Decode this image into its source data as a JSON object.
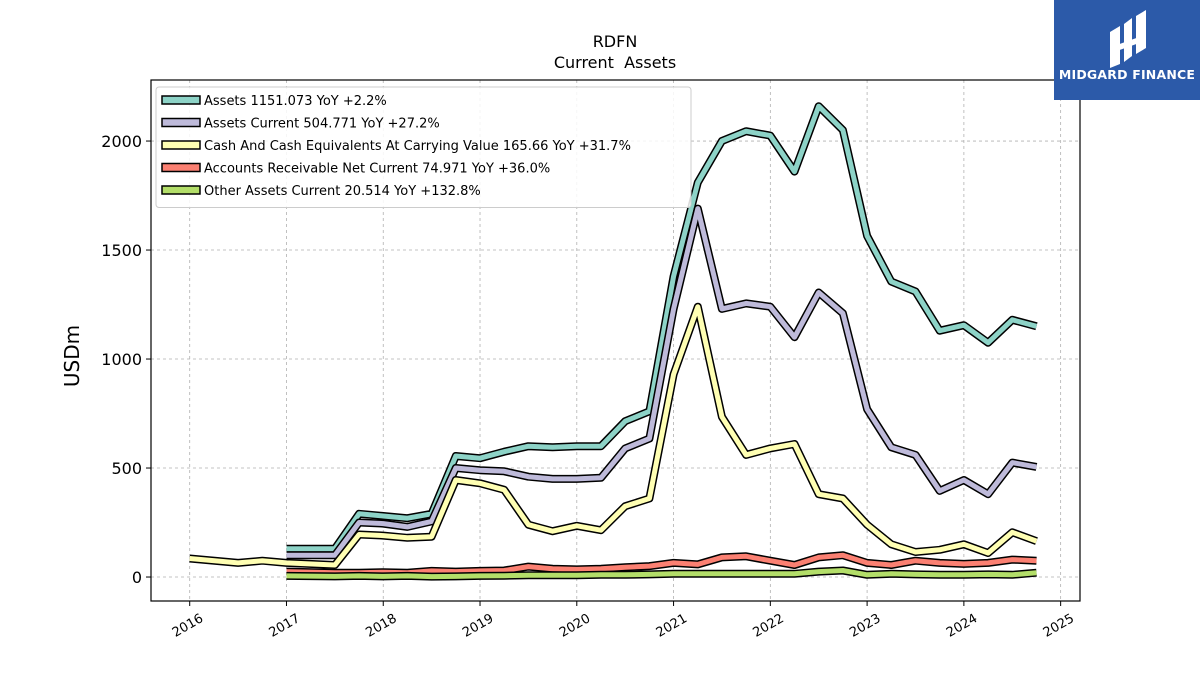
{
  "chart_data": {
    "type": "line",
    "title": "RDFN",
    "subtitle": "Current  Assets",
    "ylabel": "USDm",
    "xlabel": "",
    "xlim": [
      2015.6,
      2025.2
    ],
    "ylim": [
      -110,
      2280
    ],
    "x_ticks": [
      "2016",
      "2017",
      "2018",
      "2019",
      "2020",
      "2021",
      "2022",
      "2023",
      "2024",
      "2025"
    ],
    "y_ticks": [
      0,
      500,
      1000,
      1500,
      2000
    ],
    "grid": true,
    "legend_position": "top-left",
    "series": [
      {
        "name": "Assets  1151.073 YoY +2.2%",
        "color": "#8dd3c7",
        "x": [
          2017.0,
          2017.5,
          2017.75,
          2018.0,
          2018.25,
          2018.5,
          2018.75,
          2019.0,
          2019.25,
          2019.5,
          2019.75,
          2020.0,
          2020.25,
          2020.5,
          2020.75,
          2021.0,
          2021.25,
          2021.5,
          2021.75,
          2022.0,
          2022.25,
          2022.5,
          2022.75,
          2023.0,
          2023.25,
          2023.5,
          2023.75,
          2024.0,
          2024.25,
          2024.5,
          2024.75
        ],
        "values": [
          130,
          130,
          290,
          280,
          270,
          290,
          555,
          545,
          575,
          600,
          595,
          600,
          600,
          715,
          760,
          1380,
          1810,
          2000,
          2045,
          2025,
          1860,
          2160,
          2050,
          1565,
          1355,
          1310,
          1130,
          1155,
          1075,
          1180,
          1150
        ]
      },
      {
        "name": "Assets Current  504.771 YoY +27.2%",
        "color": "#bebada",
        "x": [
          2017.0,
          2017.5,
          2017.75,
          2018.0,
          2018.25,
          2018.5,
          2018.75,
          2019.0,
          2019.25,
          2019.5,
          2019.75,
          2020.0,
          2020.25,
          2020.5,
          2020.75,
          2021.0,
          2021.25,
          2021.5,
          2021.75,
          2022.0,
          2022.25,
          2022.5,
          2022.75,
          2023.0,
          2023.25,
          2023.5,
          2023.75,
          2024.0,
          2024.25,
          2024.5,
          2024.75
        ],
        "values": [
          100,
          100,
          250,
          245,
          230,
          255,
          500,
          490,
          485,
          460,
          450,
          450,
          455,
          590,
          635,
          1230,
          1690,
          1230,
          1255,
          1240,
          1100,
          1305,
          1210,
          770,
          595,
          560,
          395,
          445,
          380,
          525,
          505
        ]
      },
      {
        "name": "Cash And Cash Equivalents At Carrying Value  165.66 YoY +31.7%",
        "color": "#ffffb3",
        "x": [
          2016.0,
          2016.5,
          2016.75,
          2017.0,
          2017.5,
          2017.75,
          2018.0,
          2018.25,
          2018.5,
          2018.75,
          2019.0,
          2019.25,
          2019.5,
          2019.75,
          2020.0,
          2020.25,
          2020.5,
          2020.75,
          2021.0,
          2021.25,
          2021.5,
          2021.75,
          2022.0,
          2022.25,
          2022.5,
          2022.75,
          2023.0,
          2023.25,
          2023.5,
          2023.75,
          2024.0,
          2024.25,
          2024.5,
          2024.75
        ],
        "values": [
          85,
          65,
          75,
          65,
          55,
          195,
          190,
          180,
          185,
          445,
          430,
          400,
          240,
          210,
          235,
          215,
          325,
          360,
          930,
          1240,
          735,
          560,
          590,
          610,
          380,
          360,
          240,
          150,
          115,
          125,
          150,
          110,
          205,
          165
        ]
      },
      {
        "name": "Accounts Receivable Net Current  74.971 YoY +36.0%",
        "color": "#fb8072",
        "x": [
          2017.0,
          2017.5,
          2017.75,
          2018.0,
          2018.25,
          2018.5,
          2018.75,
          2019.0,
          2019.25,
          2019.5,
          2019.75,
          2020.0,
          2020.25,
          2020.5,
          2020.75,
          2021.0,
          2021.25,
          2021.5,
          2021.75,
          2022.0,
          2022.25,
          2022.5,
          2022.75,
          2023.0,
          2023.25,
          2023.5,
          2023.75,
          2024.0,
          2024.25,
          2024.5,
          2024.75
        ],
        "values": [
          25,
          20,
          20,
          22,
          20,
          28,
          25,
          28,
          30,
          48,
          38,
          35,
          38,
          45,
          50,
          65,
          58,
          90,
          95,
          75,
          55,
          90,
          100,
          65,
          55,
          75,
          65,
          60,
          65,
          80,
          75
        ]
      },
      {
        "name": "Other Assets Current  20.514 YoY +132.8%",
        "color": "#b3de69",
        "x": [
          2017.0,
          2017.5,
          2017.75,
          2018.0,
          2018.25,
          2018.5,
          2018.75,
          2019.0,
          2019.25,
          2019.5,
          2019.75,
          2020.0,
          2020.25,
          2020.5,
          2020.75,
          2021.0,
          2021.25,
          2021.5,
          2021.75,
          2022.0,
          2022.25,
          2022.5,
          2022.75,
          2023.0,
          2023.25,
          2023.5,
          2023.75,
          2024.0,
          2024.25,
          2024.5,
          2024.75
        ],
        "values": [
          5,
          3,
          5,
          3,
          5,
          2,
          3,
          5,
          6,
          8,
          8,
          8,
          10,
          10,
          12,
          15,
          15,
          15,
          15,
          15,
          15,
          25,
          30,
          10,
          15,
          12,
          10,
          10,
          12,
          10,
          20
        ]
      }
    ]
  },
  "logo": {
    "text": "MIDGARD FINANCE",
    "bg_color": "#2c5aa9"
  }
}
